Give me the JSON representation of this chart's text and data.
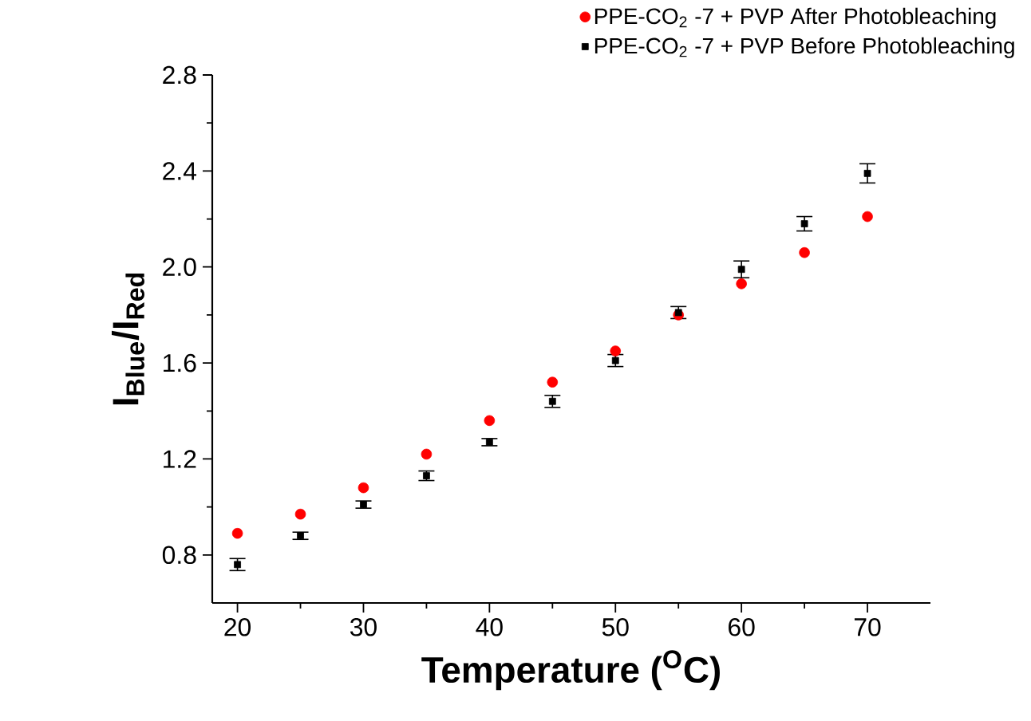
{
  "chart_data": {
    "type": "scatter",
    "xlabel": "Temperature ($^{O}$C)",
    "ylabel": "I$_{Blue}$/I$_{Red}$",
    "xlim": [
      18,
      75
    ],
    "ylim": [
      0.6,
      2.8
    ],
    "xticks": [
      20,
      30,
      40,
      50,
      60,
      70
    ],
    "yticks": [
      {
        "value": 0.8,
        "label": "0.8"
      },
      {
        "value": 1.2,
        "label": "1.2"
      },
      {
        "value": 1.6,
        "label": "1.6"
      },
      {
        "value": 2.0,
        "label": "2.0"
      },
      {
        "value": 2.4,
        "label": "2.4"
      },
      {
        "value": 2.8,
        "label": "2.8"
      }
    ],
    "legend": "top right",
    "grid": false,
    "series": [
      {
        "name": "PPE-CO$_{2}$ -7 + PVP After Photobleaching",
        "color": "#ff0000",
        "marker": "circle",
        "x": [
          20,
          25,
          30,
          35,
          40,
          45,
          50,
          55,
          60,
          65,
          70
        ],
        "values": [
          0.89,
          0.97,
          1.08,
          1.22,
          1.36,
          1.52,
          1.65,
          1.8,
          1.93,
          2.06,
          2.21
        ]
      },
      {
        "name": "PPE-CO$_{2}$ -7 + PVP Before Photobleaching",
        "color": "#000000",
        "marker": "square",
        "x": [
          20,
          25,
          30,
          35,
          40,
          45,
          50,
          55,
          60,
          65,
          70
        ],
        "values": [
          0.76,
          0.88,
          1.01,
          1.13,
          1.27,
          1.44,
          1.61,
          1.81,
          1.99,
          2.18,
          2.39
        ],
        "errors": [
          0.025,
          0.015,
          0.015,
          0.02,
          0.015,
          0.025,
          0.025,
          0.025,
          0.035,
          0.03,
          0.04
        ]
      }
    ]
  }
}
